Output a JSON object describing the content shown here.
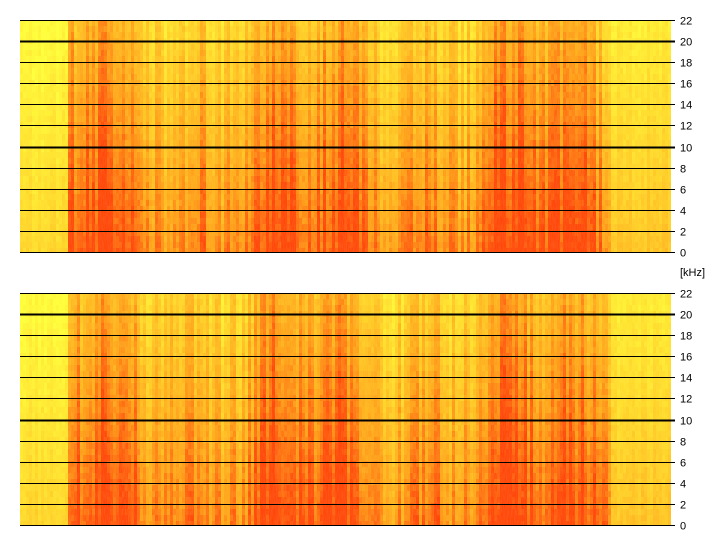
{
  "chart_data": [
    {
      "type": "heatmap",
      "channel": "top",
      "y_unit": "kHz",
      "ylim": [
        0,
        22
      ],
      "yticks": [
        0,
        2,
        4,
        6,
        8,
        10,
        12,
        14,
        16,
        18,
        20,
        22
      ],
      "grid": true,
      "grid_emphasis_at": [
        10,
        20
      ],
      "colormap": [
        "#ffff33",
        "#ffd020",
        "#ff9a10",
        "#ff3c00"
      ]
    },
    {
      "type": "heatmap",
      "channel": "bottom",
      "y_unit": "kHz",
      "ylim": [
        0,
        22
      ],
      "yticks": [
        0,
        2,
        4,
        6,
        8,
        10,
        12,
        14,
        16,
        18,
        20,
        22
      ],
      "grid": true,
      "grid_emphasis_at": [
        10,
        20
      ],
      "colormap": [
        "#ffff33",
        "#ffd020",
        "#ff9a10",
        "#ff3c00"
      ]
    }
  ],
  "unit_label": "[kHz]"
}
